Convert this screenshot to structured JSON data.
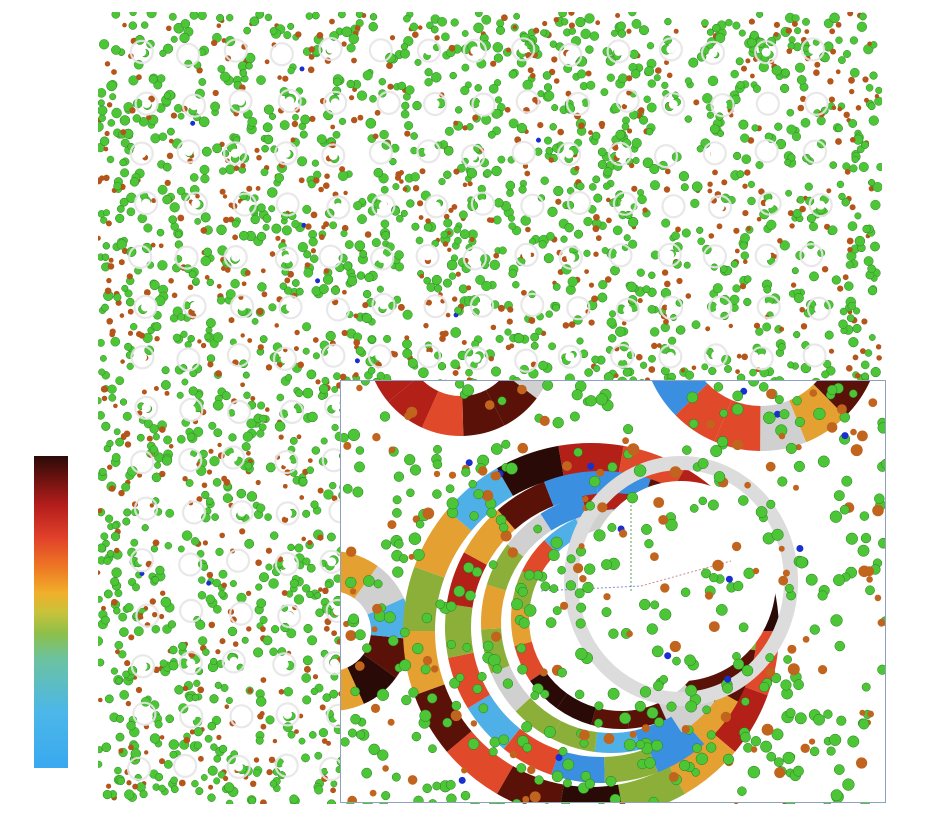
{
  "colors": {
    "background": "#ffffff",
    "particle_green": "#4cc536",
    "particle_brown": "#b4561c",
    "particle_blue": "#1a2fd0",
    "ring_white": "#f4f4f4",
    "inset_border": "#8fa1bf"
  },
  "colorbar": {
    "orientation": "vertical",
    "colors": [
      "#3aa8f0",
      "#4cb7e8",
      "#6cc2a0",
      "#8cc04a",
      "#c9c23a",
      "#f0b02a",
      "#ee7a24",
      "#e0402a",
      "#b51e1c",
      "#6a120e",
      "#2a0a08"
    ]
  },
  "inset": {
    "segment_colors": [
      "#3a8fe0",
      "#4fb0e8",
      "#8caf3a",
      "#e4a030",
      "#e04a2a",
      "#b22018",
      "#5a1208",
      "#2a0a06",
      "#d0d0d0"
    ]
  }
}
